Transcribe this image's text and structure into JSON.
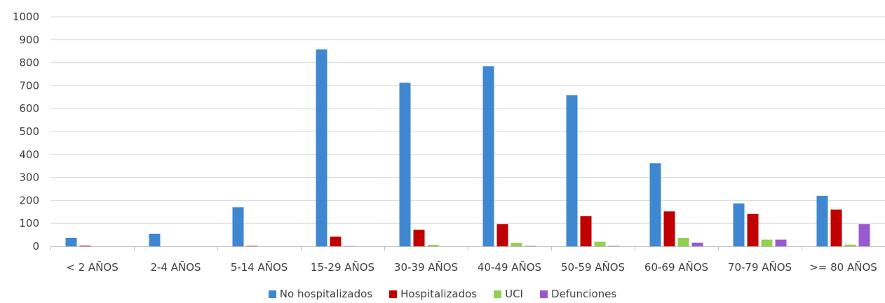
{
  "chart_data": {
    "type": "bar",
    "categories": [
      "< 2 AÑOS",
      "2-4 AÑOS",
      "5-14 AÑOS",
      "15-29 AÑOS",
      "30-39 AÑOS",
      "40-49 AÑOS",
      "50-59 AÑOS",
      "60-69 AÑOS",
      "70-79 AÑOS",
      ">= 80 AÑOS"
    ],
    "series": [
      {
        "name": "No hospitalizados",
        "color": "#3f87d0",
        "values": [
          37,
          55,
          170,
          858,
          713,
          785,
          658,
          362,
          187,
          220
        ]
      },
      {
        "name": "Hospitalizados",
        "color": "#c00000",
        "values": [
          3,
          0,
          2,
          42,
          72,
          97,
          131,
          152,
          141,
          160
        ]
      },
      {
        "name": "UCI",
        "color": "#92d050",
        "values": [
          0,
          0,
          0,
          2,
          6,
          15,
          20,
          37,
          29,
          7
        ]
      },
      {
        "name": "Defunciones",
        "color": "#9b59d0",
        "values": [
          0,
          0,
          0,
          0,
          0,
          2,
          2,
          16,
          29,
          97
        ]
      }
    ],
    "yticks": [
      "0",
      "100",
      "200",
      "300",
      "400",
      "500",
      "600",
      "700",
      "800",
      "900",
      "1000"
    ],
    "ylim": [
      0,
      1000
    ],
    "grid": true,
    "legend_position": "bottom",
    "xlabel": "",
    "ylabel": "",
    "title": ""
  }
}
